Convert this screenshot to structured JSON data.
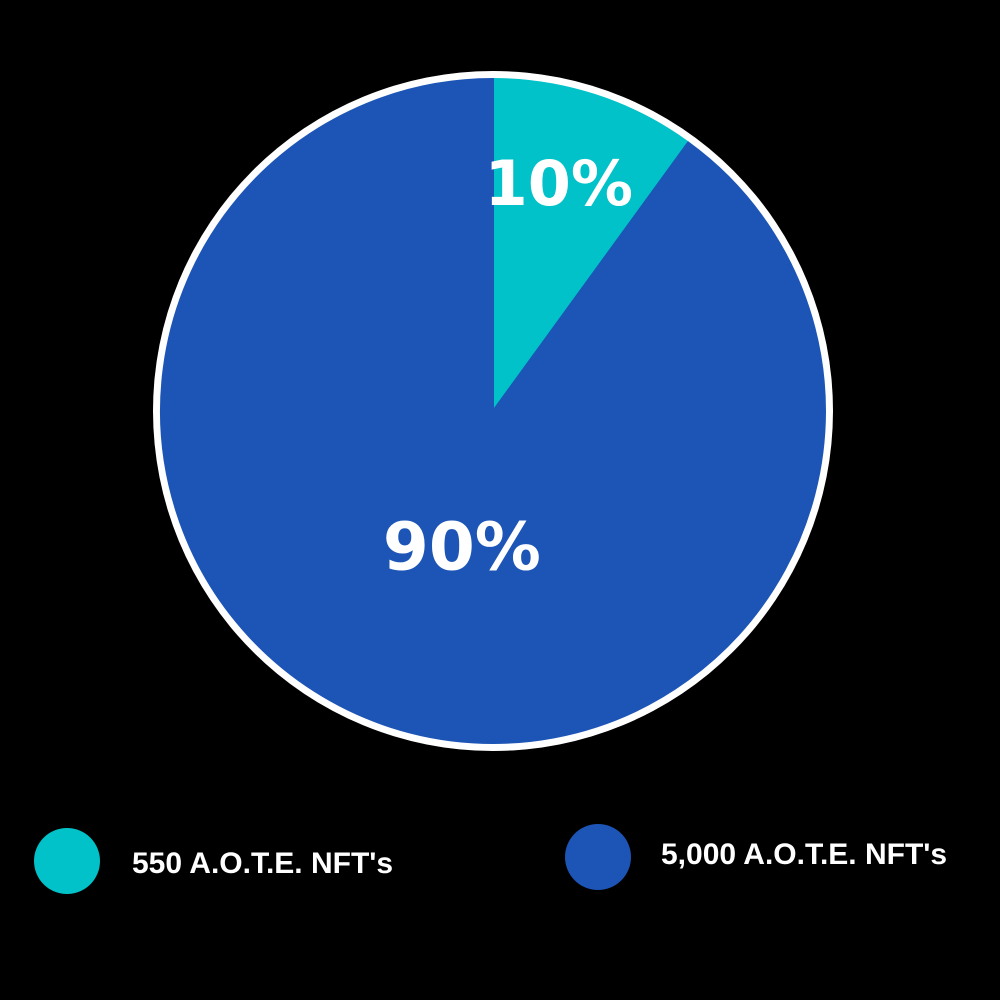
{
  "chart_data": {
    "type": "pie",
    "slices": [
      {
        "label": "550 A.O.T.E. NFT's",
        "value": 10,
        "display": "10%",
        "color": "#00C2C8"
      },
      {
        "label": "5,000 A.O.T.E. NFT's",
        "value": 90,
        "display": "90%",
        "color": "#1C55B6"
      }
    ],
    "start_angle_deg": 0,
    "direction": "clockwise",
    "border_color": "#FFFFFF",
    "legend_placement": "bottom"
  }
}
